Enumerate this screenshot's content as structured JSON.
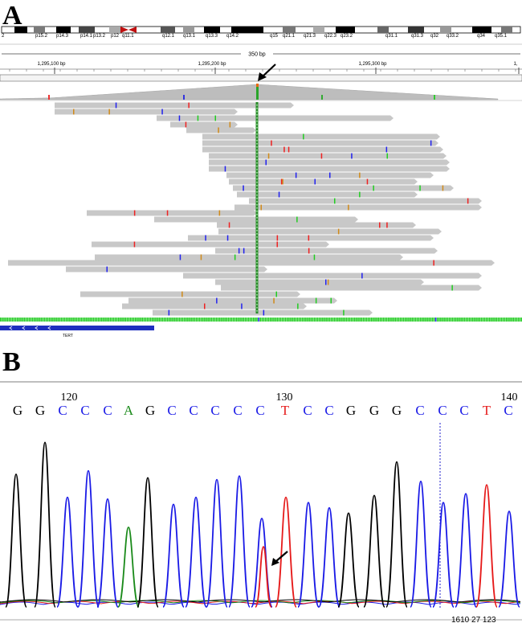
{
  "panels": {
    "a_label": "A",
    "b_label": "B"
  },
  "igv": {
    "cytobands": [
      "p15.2",
      "p14.3",
      "p14.1",
      "p13.2",
      "p12",
      "q11.1",
      "q12.1",
      "q13.1",
      "q13.3",
      "q14.2",
      "q15",
      "q21.1",
      "q21.3",
      "q22.3",
      "q23.2",
      "q31.1",
      "q31.3",
      "q32",
      "q33.2",
      "q34",
      "q35.1"
    ],
    "cytoband_left_cut": "2",
    "span_label": "350 bp",
    "ruler_ticks": [
      "1,295,100 bp",
      "1,295,200 bp",
      "1,295,300 bp",
      "1,"
    ],
    "gene_label": "TERT",
    "colors": {
      "read": "#c8c8c8",
      "mutation": "#2a8a2a",
      "gene": "#1f2fbf",
      "mismatch_a": "#22cc22",
      "mismatch_c": "#2222ee",
      "mismatch_g": "#d08a1a",
      "mismatch_t": "#ee2222"
    }
  },
  "chromatogram": {
    "position_labels": [
      "120",
      "130",
      "140"
    ],
    "bases": [
      "G",
      "G",
      "C",
      "C",
      "C",
      "A",
      "G",
      "C",
      "C",
      "C",
      "C",
      "C",
      "T",
      "C",
      "C",
      "G",
      "G",
      "G",
      "C",
      "C",
      "C",
      "T",
      "C"
    ],
    "scan_label": "1610 27 123",
    "colors": {
      "A": "#1a8a1a",
      "C": "#1a1ae6",
      "G": "#000000",
      "T": "#e61a1a"
    }
  }
}
